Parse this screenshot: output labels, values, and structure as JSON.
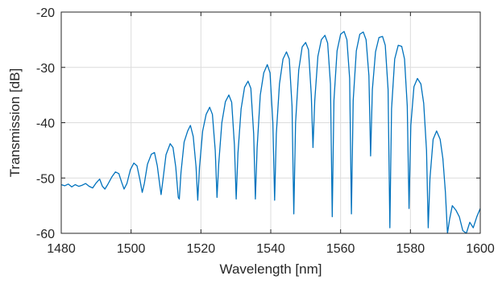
{
  "chart_data": {
    "type": "line",
    "title": "",
    "xlabel": "Wavelength [nm]",
    "ylabel": "Transmission [dB]",
    "xlim": [
      1480,
      1600
    ],
    "ylim": [
      -60,
      -20
    ],
    "xticks": [
      1480,
      1500,
      1520,
      1540,
      1560,
      1580,
      1600
    ],
    "yticks": [
      -20,
      -30,
      -40,
      -50,
      -60
    ],
    "grid": true,
    "line_color": "#0072BD",
    "series": [
      {
        "points": [
          [
            1480,
            -51.2
          ],
          [
            1481,
            -51.4
          ],
          [
            1482,
            -51.1
          ],
          [
            1483,
            -51.6
          ],
          [
            1484,
            -51.2
          ],
          [
            1485,
            -51.5
          ],
          [
            1486,
            -51.3
          ],
          [
            1487,
            -51.0
          ],
          [
            1488,
            -51.5
          ],
          [
            1489,
            -51.8
          ],
          [
            1490,
            -50.9
          ],
          [
            1491,
            -50.2
          ],
          [
            1491.8,
            -51.5
          ],
          [
            1492.5,
            -52.0
          ],
          [
            1493.3,
            -51.2
          ],
          [
            1494.5,
            -49.8
          ],
          [
            1495.5,
            -48.9
          ],
          [
            1496.5,
            -49.2
          ],
          [
            1497.3,
            -50.8
          ],
          [
            1498,
            -52.0
          ],
          [
            1498.8,
            -51.0
          ],
          [
            1499.8,
            -48.5
          ],
          [
            1500.8,
            -47.3
          ],
          [
            1501.7,
            -47.8
          ],
          [
            1502.5,
            -50.2
          ],
          [
            1503.2,
            -52.6
          ],
          [
            1503.8,
            -51.0
          ],
          [
            1504.7,
            -47.5
          ],
          [
            1505.8,
            -45.7
          ],
          [
            1506.7,
            -45.4
          ],
          [
            1507.5,
            -47.8
          ],
          [
            1508.2,
            -51.2
          ],
          [
            1508.6,
            -53.0
          ],
          [
            1509.2,
            -50.0
          ],
          [
            1510,
            -45.8
          ],
          [
            1511.2,
            -43.8
          ],
          [
            1512,
            -44.5
          ],
          [
            1512.8,
            -48.0
          ],
          [
            1513.5,
            -53.5
          ],
          [
            1513.8,
            -53.8
          ],
          [
            1514.3,
            -49.0
          ],
          [
            1515.2,
            -43.5
          ],
          [
            1516.2,
            -41.5
          ],
          [
            1517,
            -40.5
          ],
          [
            1517.8,
            -42.5
          ],
          [
            1518.6,
            -48.0
          ],
          [
            1519.1,
            -54.0
          ],
          [
            1519.6,
            -48.0
          ],
          [
            1520.5,
            -41.5
          ],
          [
            1521.5,
            -38.5
          ],
          [
            1522.5,
            -37.2
          ],
          [
            1523.3,
            -38.5
          ],
          [
            1524.1,
            -45.0
          ],
          [
            1524.6,
            -53.5
          ],
          [
            1525.1,
            -47.5
          ],
          [
            1526,
            -40.0
          ],
          [
            1527,
            -36.2
          ],
          [
            1528,
            -35.0
          ],
          [
            1528.8,
            -36.3
          ],
          [
            1529.6,
            -44.0
          ],
          [
            1530.1,
            -53.8
          ],
          [
            1530.6,
            -45.5
          ],
          [
            1531.5,
            -37.5
          ],
          [
            1532.5,
            -33.6
          ],
          [
            1533.5,
            -32.5
          ],
          [
            1534.3,
            -33.8
          ],
          [
            1535.1,
            -42.0
          ],
          [
            1535.6,
            -53.8
          ],
          [
            1536.1,
            -44.5
          ],
          [
            1537,
            -35.0
          ],
          [
            1538,
            -31.0
          ],
          [
            1539,
            -29.5
          ],
          [
            1539.8,
            -31.0
          ],
          [
            1540.6,
            -40.0
          ],
          [
            1541.1,
            -54.0
          ],
          [
            1541.6,
            -42.0
          ],
          [
            1542.5,
            -33.0
          ],
          [
            1543.5,
            -28.5
          ],
          [
            1544.5,
            -27.2
          ],
          [
            1545.3,
            -28.5
          ],
          [
            1546.1,
            -37.0
          ],
          [
            1546.6,
            -56.5
          ],
          [
            1547.1,
            -40.0
          ],
          [
            1548,
            -30.5
          ],
          [
            1549,
            -26.3
          ],
          [
            1550,
            -25.5
          ],
          [
            1550.8,
            -26.8
          ],
          [
            1551.6,
            -35.0
          ],
          [
            1552.1,
            -44.5
          ],
          [
            1552.6,
            -36.0
          ],
          [
            1553.5,
            -28.0
          ],
          [
            1554.5,
            -25.0
          ],
          [
            1555.5,
            -24.2
          ],
          [
            1556.3,
            -25.6
          ],
          [
            1557.1,
            -33.0
          ],
          [
            1557.6,
            -57.0
          ],
          [
            1558.1,
            -36.0
          ],
          [
            1559,
            -27.0
          ],
          [
            1560,
            -24.0
          ],
          [
            1561,
            -23.5
          ],
          [
            1561.8,
            -25.0
          ],
          [
            1562.6,
            -32.0
          ],
          [
            1563.1,
            -56.5
          ],
          [
            1563.6,
            -36.0
          ],
          [
            1564.5,
            -27.0
          ],
          [
            1565.5,
            -24.0
          ],
          [
            1566.5,
            -23.6
          ],
          [
            1567.3,
            -25.0
          ],
          [
            1568.1,
            -31.5
          ],
          [
            1568.6,
            -46.0
          ],
          [
            1569.1,
            -34.0
          ],
          [
            1570,
            -27.2
          ],
          [
            1571,
            -24.6
          ],
          [
            1572,
            -24.4
          ],
          [
            1572.8,
            -26.0
          ],
          [
            1573.6,
            -34.0
          ],
          [
            1574.1,
            -59.0
          ],
          [
            1574.6,
            -37.5
          ],
          [
            1575.5,
            -28.5
          ],
          [
            1576.5,
            -26.0
          ],
          [
            1577.5,
            -26.2
          ],
          [
            1578.3,
            -28.5
          ],
          [
            1579.1,
            -37.0
          ],
          [
            1579.6,
            -55.5
          ],
          [
            1580.1,
            -40.5
          ],
          [
            1581,
            -33.5
          ],
          [
            1582,
            -32.0
          ],
          [
            1583,
            -33.0
          ],
          [
            1583.8,
            -36.5
          ],
          [
            1584.6,
            -45.0
          ],
          [
            1585.1,
            -59.0
          ],
          [
            1585.6,
            -50.0
          ],
          [
            1586.5,
            -43.0
          ],
          [
            1587.5,
            -41.5
          ],
          [
            1588.5,
            -43.0
          ],
          [
            1589.3,
            -46.5
          ],
          [
            1590,
            -52.5
          ],
          [
            1590.6,
            -60.0
          ],
          [
            1591.2,
            -57.5
          ],
          [
            1592,
            -55.0
          ],
          [
            1593,
            -55.8
          ],
          [
            1594,
            -57.0
          ],
          [
            1595,
            -59.5
          ],
          [
            1596,
            -60.0
          ],
          [
            1597,
            -58.0
          ],
          [
            1598,
            -59.0
          ],
          [
            1599,
            -57.0
          ],
          [
            1600,
            -55.5
          ]
        ]
      }
    ]
  }
}
